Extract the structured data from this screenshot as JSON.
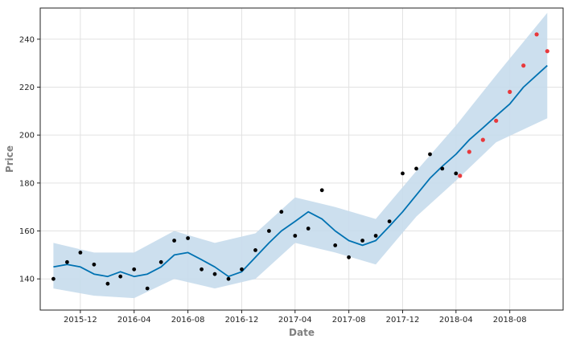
{
  "chart_data": {
    "type": "line",
    "title": "",
    "xlabel": "Date",
    "ylabel": "Price",
    "grid": true,
    "xlim": [
      "2015-09-01",
      "2018-11-30"
    ],
    "ylim": [
      127,
      253
    ],
    "x_ticks": [
      "2015-12",
      "2016-04",
      "2016-08",
      "2016-12",
      "2017-04",
      "2017-08",
      "2017-12",
      "2018-04",
      "2018-08"
    ],
    "y_ticks": [
      140,
      160,
      180,
      200,
      220,
      240
    ],
    "colors": {
      "forecast_line": "#0072b2",
      "uncertainty_band": "#c6dcec",
      "actual_points": "#000000",
      "test_points": "#e8393c",
      "grid": "#e2e2e2"
    },
    "series": [
      {
        "role": "forecast",
        "x": [
          "2015-10-01",
          "2015-11-01",
          "2015-12-01",
          "2016-01-01",
          "2016-02-01",
          "2016-03-01",
          "2016-04-01",
          "2016-05-01",
          "2016-06-01",
          "2016-07-01",
          "2016-08-01",
          "2016-09-01",
          "2016-10-01",
          "2016-11-01",
          "2016-12-01",
          "2017-01-01",
          "2017-02-01",
          "2017-03-01",
          "2017-04-01",
          "2017-05-01",
          "2017-06-01",
          "2017-07-01",
          "2017-08-01",
          "2017-09-01",
          "2017-10-01",
          "2017-11-01",
          "2017-12-01",
          "2018-01-01",
          "2018-02-01",
          "2018-03-01",
          "2018-04-01",
          "2018-05-01",
          "2018-06-01",
          "2018-07-01",
          "2018-08-01",
          "2018-09-01",
          "2018-10-01",
          "2018-10-25"
        ],
        "y": [
          145,
          146,
          145,
          142,
          141,
          143,
          141,
          142,
          145,
          150,
          151,
          148,
          145,
          141,
          143,
          149,
          155,
          160,
          164,
          168,
          165,
          160,
          156,
          154,
          156,
          162,
          168,
          175,
          182,
          187,
          192,
          198,
          203,
          208,
          213,
          220,
          225,
          229
        ]
      },
      {
        "role": "uncertainty_lower",
        "x": [
          "2015-10-01",
          "2016-01-01",
          "2016-04-01",
          "2016-07-01",
          "2016-10-01",
          "2017-01-01",
          "2017-04-01",
          "2017-07-01",
          "2017-10-01",
          "2018-01-01",
          "2018-04-01",
          "2018-07-01",
          "2018-10-25"
        ],
        "y": [
          136,
          133,
          132,
          140,
          136,
          140,
          155,
          151,
          146,
          166,
          181,
          197,
          207
        ]
      },
      {
        "role": "uncertainty_upper",
        "x": [
          "2015-10-01",
          "2016-01-01",
          "2016-04-01",
          "2016-07-01",
          "2016-10-01",
          "2017-01-01",
          "2017-04-01",
          "2017-07-01",
          "2017-10-01",
          "2018-01-01",
          "2018-04-01",
          "2018-07-01",
          "2018-10-25"
        ],
        "y": [
          155,
          151,
          151,
          160,
          155,
          159,
          174,
          170,
          165,
          185,
          204,
          225,
          251
        ]
      },
      {
        "role": "observed",
        "x": [
          "2015-10-01",
          "2015-11-01",
          "2015-12-01",
          "2016-01-01",
          "2016-02-01",
          "2016-03-01",
          "2016-04-01",
          "2016-05-01",
          "2016-06-01",
          "2016-07-01",
          "2016-08-01",
          "2016-09-01",
          "2016-10-01",
          "2016-11-01",
          "2016-12-01",
          "2017-01-01",
          "2017-02-01",
          "2017-03-01",
          "2017-04-01",
          "2017-05-01",
          "2017-06-01",
          "2017-07-01",
          "2017-08-01",
          "2017-09-01",
          "2017-10-01",
          "2017-11-01",
          "2017-12-01",
          "2018-01-01",
          "2018-02-01",
          "2018-03-01",
          "2018-04-01"
        ],
        "y": [
          140,
          147,
          151,
          146,
          138,
          141,
          144,
          136,
          147,
          156,
          157,
          144,
          142,
          140,
          144,
          152,
          160,
          168,
          158,
          161,
          177,
          154,
          149,
          156,
          158,
          164,
          184,
          186,
          192,
          186,
          184
        ]
      },
      {
        "role": "test",
        "x": [
          "2018-04-10",
          "2018-05-01",
          "2018-06-01",
          "2018-07-01",
          "2018-08-01",
          "2018-09-01",
          "2018-10-01",
          "2018-10-25"
        ],
        "y": [
          183,
          193,
          198,
          206,
          218,
          229,
          242,
          235
        ]
      }
    ]
  }
}
